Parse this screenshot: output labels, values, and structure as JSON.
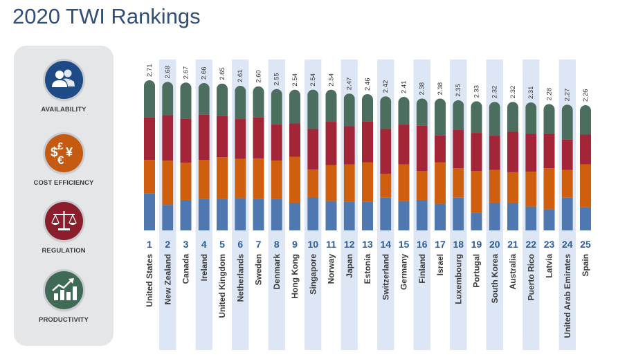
{
  "page": {
    "title": "2020 TWI Rankings"
  },
  "legend": [
    {
      "label": "AVAILABILITY",
      "icon": "people-icon",
      "color": "#1e4a86"
    },
    {
      "label": "COST EFFICIENCY",
      "icon": "currency-icon",
      "color": "#c55a11",
      "glyph": "$£€¥"
    },
    {
      "label": "REGULATION",
      "icon": "scales-icon",
      "color": "#8b1e2c"
    },
    {
      "label": "PRODUCTIVITY",
      "icon": "growth-chart-icon",
      "color": "#3f6b56"
    }
  ],
  "chart_data": {
    "type": "bar",
    "stacked": true,
    "categories": [
      "United States",
      "New Zealand",
      "Canada",
      "Ireland",
      "United Kingdom",
      "Netherlands",
      "Sweden",
      "Denmark",
      "Hong Kong",
      "Singapore",
      "Norway",
      "Japan",
      "Estonia",
      "Switzerland",
      "Germany",
      "Finland",
      "Israel",
      "Luxembourg",
      "Portugal",
      "South Korea",
      "Australia",
      "Puerto Rico",
      "Latvia",
      "United Arab Emirates",
      "Spain"
    ],
    "ranks": [
      "1",
      "2",
      "3",
      "4",
      "5",
      "6",
      "7",
      "8",
      "9",
      "10",
      "11",
      "12",
      "13",
      "14",
      "15",
      "16",
      "17",
      "18",
      "19",
      "20",
      "21",
      "22",
      "23",
      "24",
      "25"
    ],
    "totals": [
      2.71,
      2.68,
      2.67,
      2.66,
      2.65,
      2.61,
      2.6,
      2.55,
      2.54,
      2.54,
      2.54,
      2.47,
      2.46,
      2.42,
      2.41,
      2.38,
      2.38,
      2.35,
      2.33,
      2.32,
      2.32,
      2.31,
      2.28,
      2.27,
      2.26
    ],
    "total_labels": [
      "2.71",
      "2.68",
      "2.67",
      "2.66",
      "2.65",
      "2.61",
      "2.60",
      "2.55",
      "2.54",
      "2.54",
      "2.54",
      "2.47",
      "2.46",
      "2.42",
      "2.41",
      "2.38",
      "2.38",
      "2.35",
      "2.33",
      "2.32",
      "2.32",
      "2.31",
      "2.28",
      "2.27",
      "2.26"
    ],
    "series": [
      {
        "name": "AVAILABILITY",
        "color": "#4f77b0",
        "values": [
          0.67,
          0.46,
          0.55,
          0.57,
          0.57,
          0.58,
          0.57,
          0.57,
          0.5,
          0.6,
          0.53,
          0.52,
          0.52,
          0.59,
          0.53,
          0.55,
          0.48,
          0.59,
          0.32,
          0.5,
          0.5,
          0.43,
          0.38,
          0.59,
          0.42
        ]
      },
      {
        "name": "COST EFFICIENCY",
        "color": "#cf5f0e",
        "values": [
          0.6,
          0.8,
          0.67,
          0.7,
          0.75,
          0.71,
          0.73,
          0.69,
          0.83,
          0.5,
          0.65,
          0.67,
          0.71,
          0.43,
          0.66,
          0.52,
          0.75,
          0.53,
          0.75,
          0.59,
          0.55,
          0.63,
          0.74,
          0.5,
          0.77
        ]
      },
      {
        "name": "REGULATION",
        "color": "#a32638",
        "values": [
          0.77,
          0.82,
          0.8,
          0.82,
          0.75,
          0.72,
          0.74,
          0.65,
          0.6,
          0.73,
          0.78,
          0.69,
          0.74,
          0.81,
          0.72,
          0.82,
          0.49,
          0.7,
          0.69,
          0.62,
          0.73,
          0.69,
          0.63,
          0.55,
          0.54
        ]
      },
      {
        "name": "PRODUCTIVITY",
        "color": "#4b6e5f",
        "values": [
          0.67,
          0.6,
          0.65,
          0.57,
          0.58,
          0.6,
          0.56,
          0.64,
          0.61,
          0.71,
          0.58,
          0.59,
          0.49,
          0.59,
          0.5,
          0.49,
          0.66,
          0.53,
          0.57,
          0.61,
          0.54,
          0.56,
          0.53,
          0.63,
          0.53
        ]
      }
    ],
    "ylim": [
      0,
      2.75
    ],
    "grid": false,
    "legend": "left"
  }
}
